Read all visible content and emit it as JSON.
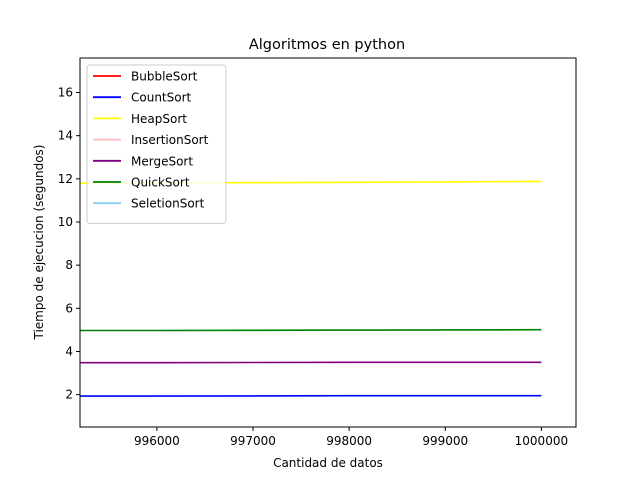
{
  "chart_data": {
    "type": "line",
    "title": "Algoritmos en python",
    "xlabel": "Cantidad de datos",
    "ylabel": "Tiempo de ejecucion (segundos)",
    "xlim": [
      995200,
      1000360
    ],
    "ylim": [
      0.5,
      17.6
    ],
    "xticks": [
      996000,
      997000,
      998000,
      999000,
      1000000
    ],
    "xtick_labels": [
      "996000",
      "997000",
      "998000",
      "999000",
      "1000000"
    ],
    "yticks": [
      2,
      4,
      6,
      8,
      10,
      12,
      14,
      16
    ],
    "ytick_labels": [
      "2",
      "4",
      "6",
      "8",
      "10",
      "12",
      "14",
      "16"
    ],
    "grid": false,
    "legend_position": "upper-left",
    "series": [
      {
        "name": "BubbleSort",
        "color": "#ff0000",
        "x": [
          995200,
          1000000
        ],
        "y": [
          null,
          null
        ]
      },
      {
        "name": "CountSort",
        "color": "#0000ff",
        "x": [
          995200,
          996000,
          997000,
          998000,
          999000,
          1000000
        ],
        "y": [
          1.93,
          1.93,
          1.94,
          1.95,
          1.95,
          1.95
        ]
      },
      {
        "name": "HeapSort",
        "color": "#ffff00",
        "x": [
          995200,
          996000,
          997000,
          998000,
          999000,
          1000000
        ],
        "y": [
          11.8,
          11.81,
          11.82,
          11.84,
          11.86,
          11.88
        ]
      },
      {
        "name": "InsertionSort",
        "color": "#ffb6c1",
        "x": [
          995200,
          1000000
        ],
        "y": [
          null,
          null
        ]
      },
      {
        "name": "MergeSort",
        "color": "#800080",
        "x": [
          995200,
          996000,
          997000,
          998000,
          999000,
          1000000
        ],
        "y": [
          3.48,
          3.48,
          3.49,
          3.5,
          3.5,
          3.5
        ]
      },
      {
        "name": "QuickSort",
        "color": "#008000",
        "x": [
          995200,
          996000,
          997000,
          998000,
          999000,
          1000000
        ],
        "y": [
          4.97,
          4.97,
          4.98,
          4.99,
          5.0,
          5.01
        ]
      },
      {
        "name": "SeletionSort",
        "color": "#87ceeb",
        "x": [
          995200,
          1000000
        ],
        "y": [
          null,
          null
        ]
      }
    ]
  }
}
